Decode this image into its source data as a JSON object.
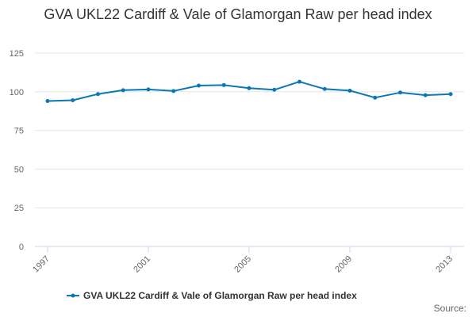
{
  "chart_data": {
    "type": "line",
    "title": "GVA UKL22 Cardiff & Vale of Glamorgan Raw per head index",
    "xlabel": "",
    "ylabel": "",
    "x": [
      1997,
      1998,
      1999,
      2000,
      2001,
      2002,
      2003,
      2004,
      2005,
      2006,
      2007,
      2008,
      2009,
      2010,
      2011,
      2012,
      2013
    ],
    "x_tick_labels": [
      "1997",
      "2001",
      "2005",
      "2009",
      "2013"
    ],
    "y_ticks": [
      0,
      25,
      50,
      75,
      100,
      125
    ],
    "ylim": [
      0,
      125
    ],
    "xlim": [
      1997,
      2013
    ],
    "grid": true,
    "legend_position": "bottom",
    "series": [
      {
        "name": "GVA UKL22 Cardiff & Vale of Glamorgan Raw per head index",
        "color": "#0b77b4",
        "values": [
          94,
          94.5,
          98.5,
          101,
          101.5,
          100.5,
          104,
          104.3,
          102.3,
          101.3,
          106.5,
          101.8,
          100.7,
          96.2,
          99.5,
          97.8,
          98.5
        ]
      }
    ]
  },
  "credit": "Source:"
}
